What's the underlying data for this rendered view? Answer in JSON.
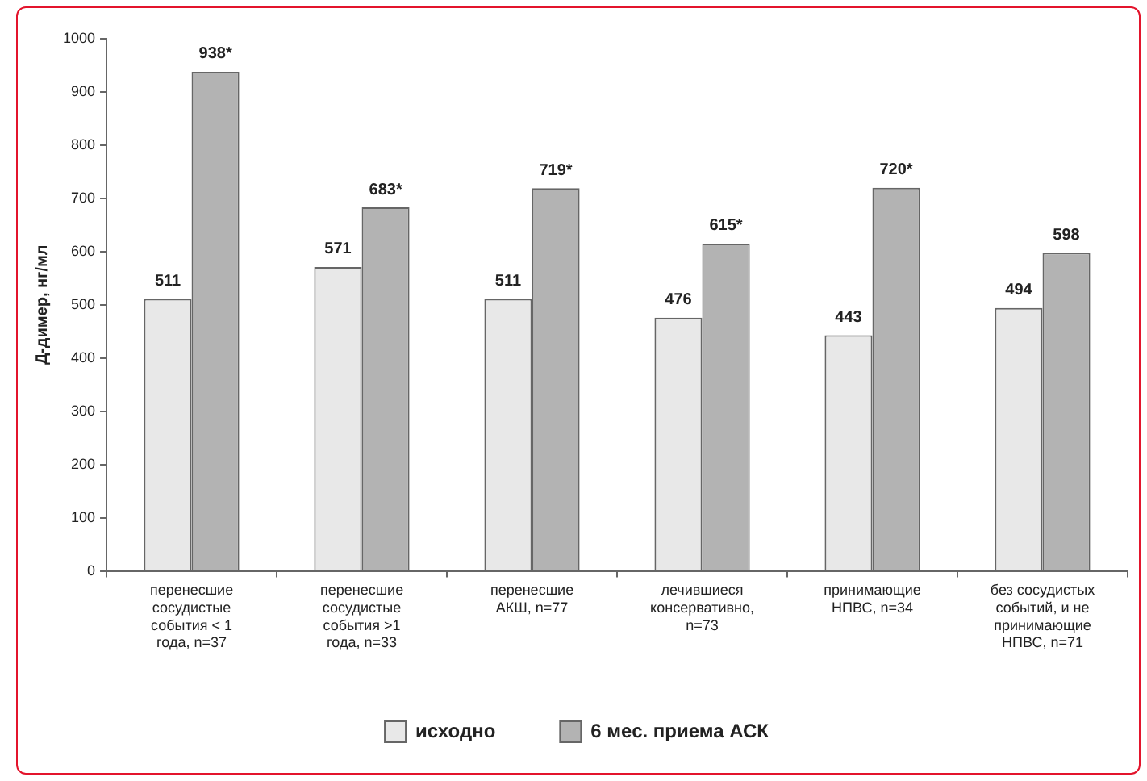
{
  "chart_data": {
    "type": "bar",
    "ylabel": "Д-димер, нг/мл",
    "categories": [
      "перенесшие сосудистые события < 1 года, n=37",
      "перенесшие сосудистые события >1 года, n=33",
      "перенесшие АКШ, n=77",
      "лечившиеся консервативно, n=73",
      "принимающие НПВС, n=34",
      "без сосудистых событий, и не принимающие НПВС, n=71"
    ],
    "series": [
      {
        "name": "исходно",
        "color": "#e8e8e8",
        "values": [
          511,
          571,
          511,
          476,
          443,
          494
        ],
        "value_labels": [
          "511",
          "571",
          "511",
          "476",
          "443",
          "494"
        ]
      },
      {
        "name": "6 мес. приема АСК",
        "color": "#b3b3b3",
        "values": [
          938,
          683,
          719,
          615,
          720,
          598
        ],
        "value_labels": [
          "938*",
          "683*",
          "719*",
          "615*",
          "720*",
          "598"
        ]
      }
    ],
    "ylim": [
      0,
      1000
    ],
    "yticks": [
      0,
      100,
      200,
      300,
      400,
      500,
      600,
      700,
      800,
      900,
      1000
    ],
    "grid": false,
    "legend": "bottom"
  }
}
